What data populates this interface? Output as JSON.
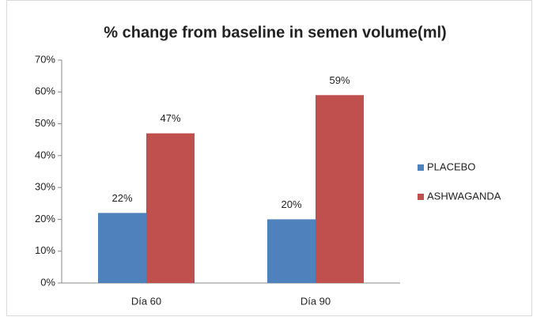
{
  "chart_data": {
    "type": "bar",
    "title": "% change from baseline in semen volume(ml)",
    "categories": [
      "Día 60",
      "Día 90"
    ],
    "series": [
      {
        "name": "PLACEBO",
        "color": "#4f81bd",
        "values": [
          22,
          20
        ],
        "value_labels": [
          "22%",
          "20%"
        ]
      },
      {
        "name": "ASHWAGANDA",
        "color": "#c0504d",
        "values": [
          47,
          59
        ],
        "value_labels": [
          "47%",
          "59%"
        ]
      }
    ],
    "ylim": [
      0,
      70
    ],
    "yticks": [
      {
        "value": 0,
        "label": "0%"
      },
      {
        "value": 10,
        "label": "10%"
      },
      {
        "value": 20,
        "label": "20%"
      },
      {
        "value": 30,
        "label": "30%"
      },
      {
        "value": 40,
        "label": "40%"
      },
      {
        "value": 50,
        "label": "50%"
      },
      {
        "value": 60,
        "label": "60%"
      },
      {
        "value": 70,
        "label": "70%"
      }
    ],
    "grid": false,
    "legend": "right"
  }
}
